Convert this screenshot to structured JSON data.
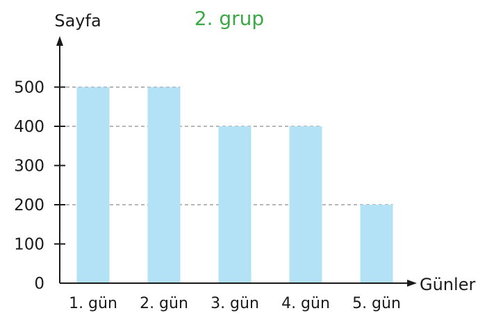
{
  "chart_data": {
    "type": "bar",
    "title": "2. grup",
    "ylabel": "Sayfa",
    "xlabel": "Günler",
    "categories": [
      "1. gün",
      "2. gün",
      "3. gün",
      "4. gün",
      "5. gün"
    ],
    "values": [
      500,
      500,
      400,
      400,
      200
    ],
    "yticks": [
      "0",
      "100",
      "200",
      "300",
      "400",
      "500"
    ],
    "ylim": [
      0,
      500
    ],
    "grid": "dashed lines at bar tops",
    "colors": {
      "bar": "#b3e2f6",
      "title": "#3aa845",
      "axis": "#1a1a1a",
      "guide": "#8c8c8c"
    }
  }
}
